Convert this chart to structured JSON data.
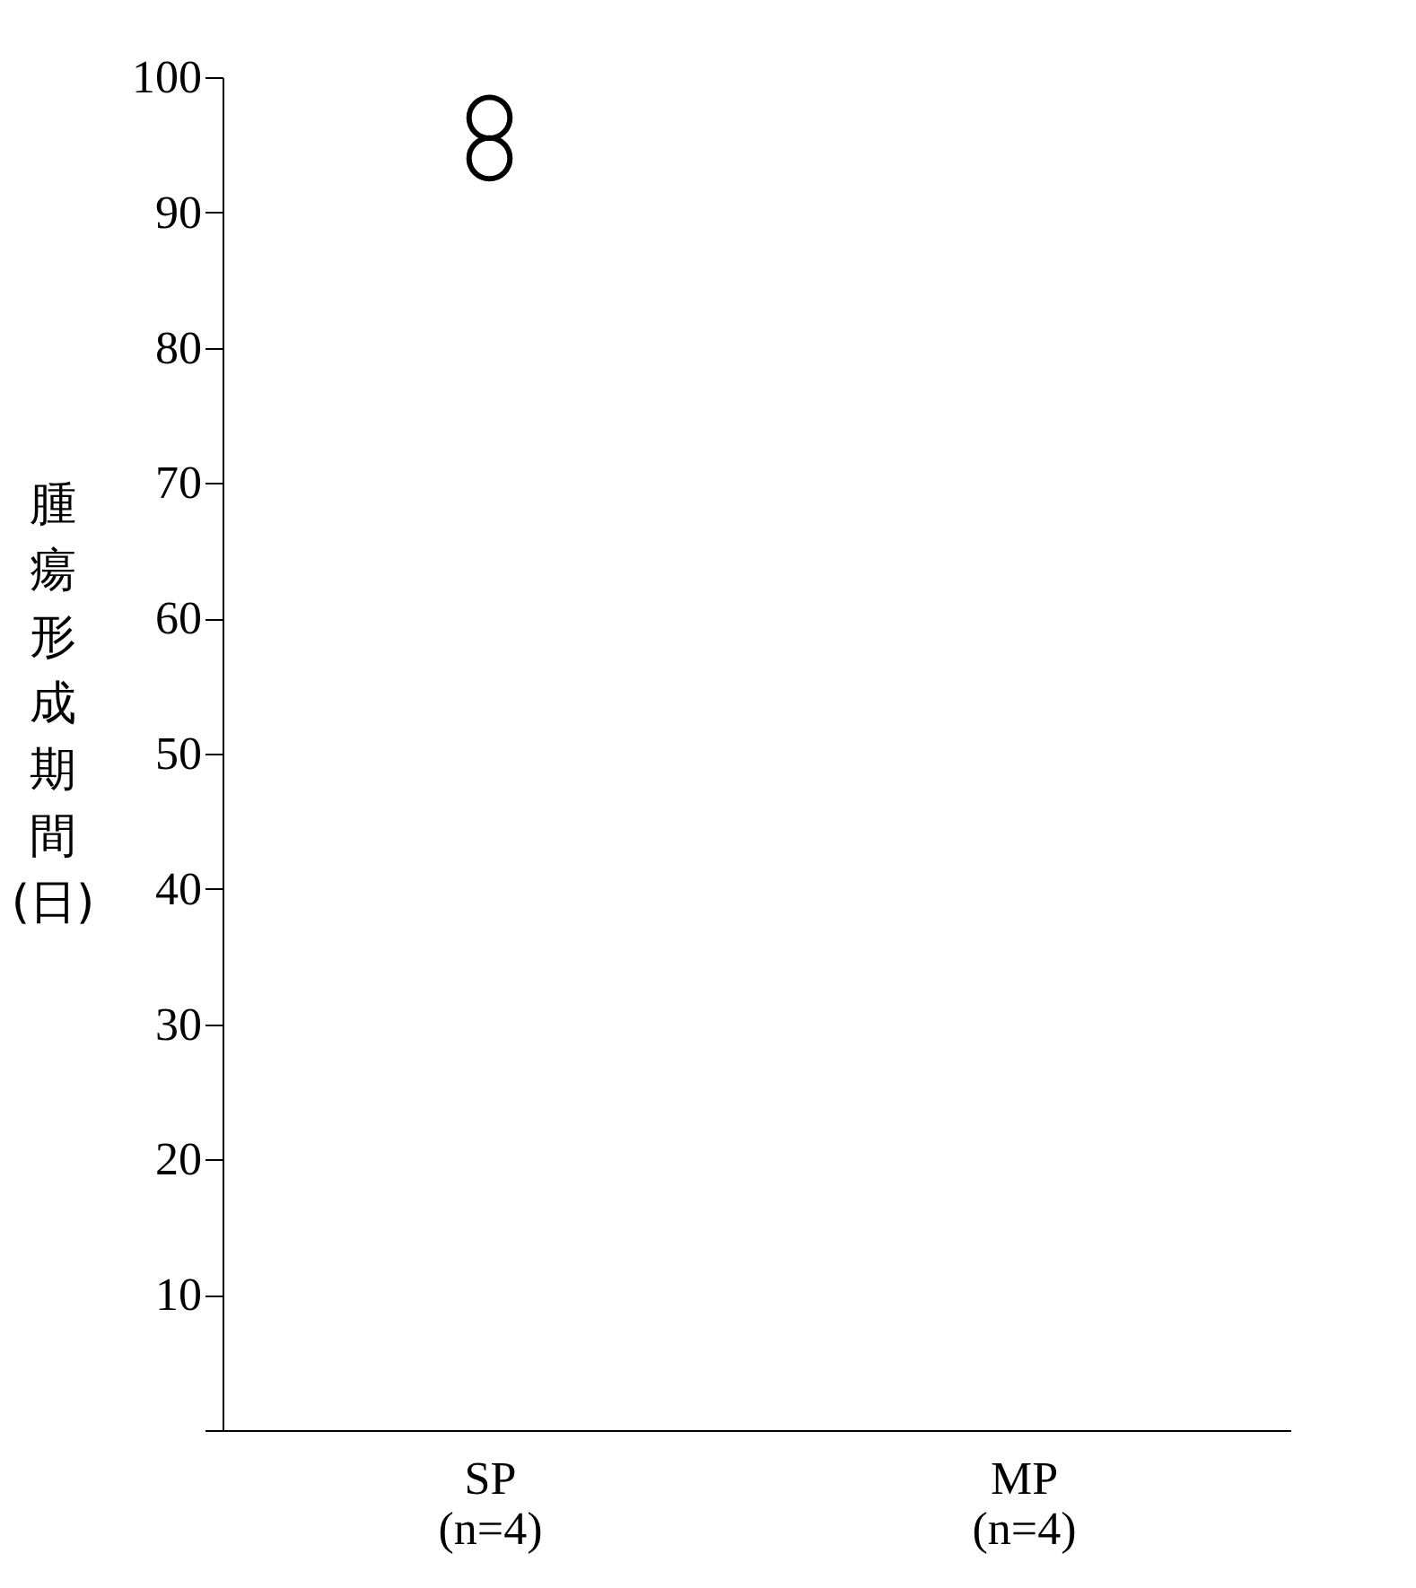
{
  "chart_data": {
    "type": "scatter",
    "ylabel": "腫瘍形成期間(日)",
    "categories": [
      "SP\n(n=4)",
      "MP\n(n=4)"
    ],
    "series": [
      {
        "color": "#000000",
        "x": [
          "SP\n(n=4)",
          "SP\n(n=4)"
        ],
        "values": [
          97,
          94
        ]
      }
    ],
    "ylim": [
      0,
      100
    ],
    "yticks": [
      {
        "value": 0,
        "label": null
      },
      10,
      20,
      30,
      40,
      50,
      60,
      70,
      80,
      90,
      100
    ],
    "marker": "circle",
    "grid": false
  }
}
